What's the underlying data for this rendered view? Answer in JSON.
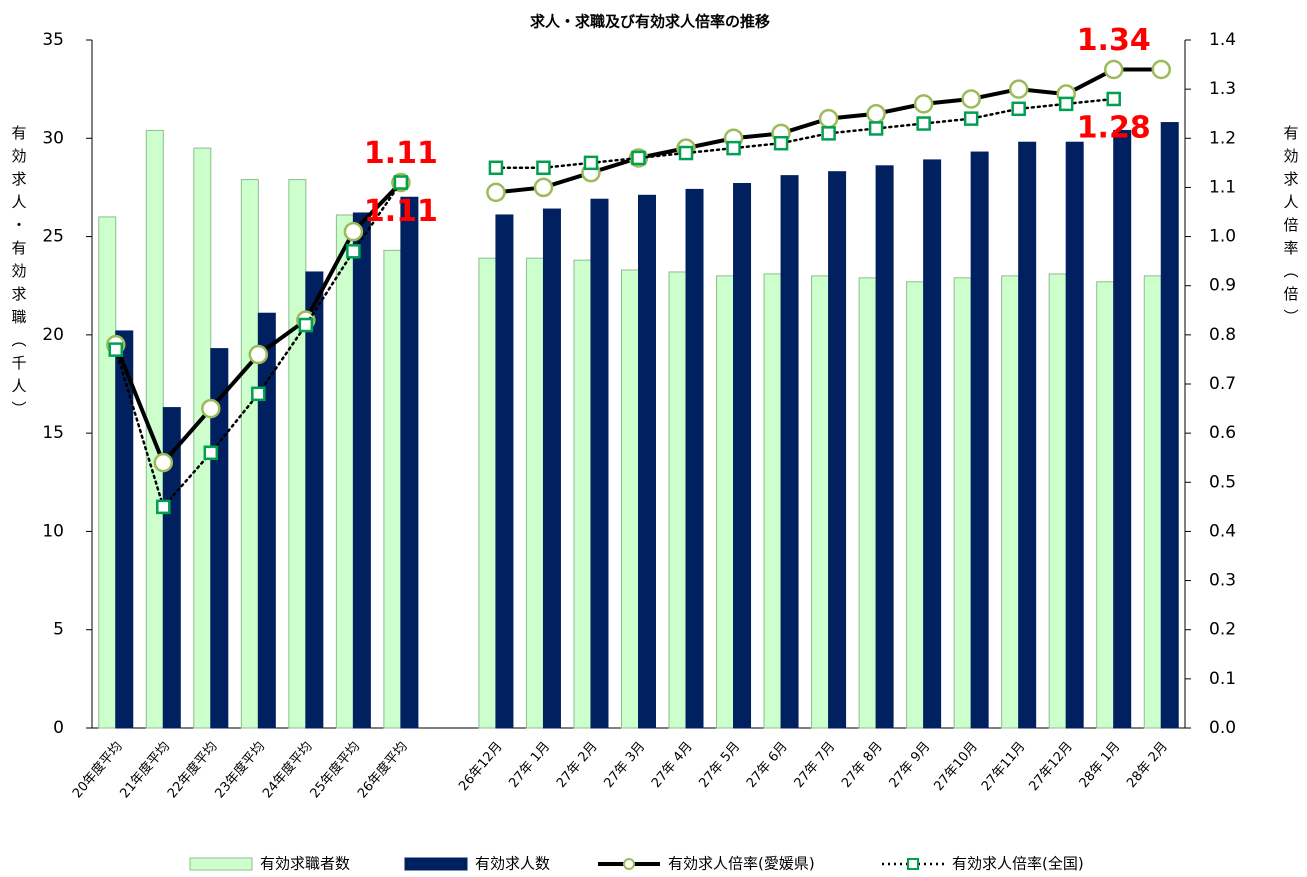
{
  "chart_data": {
    "type": "bar-line",
    "title": "求人・求職及び有効求人倍率の推移",
    "ylabel": "有効求人・有効求職（千人）",
    "y2label": "有効求人倍率（倍）",
    "categories": [
      "20年度平均",
      "21年度平均",
      "22年度平均",
      "23年度平均",
      "24年度平均",
      "25年度平均",
      "26年度平均",
      null,
      "26年12月",
      "27年 1月",
      "27年 2月",
      "27年 3月",
      "27年 4月",
      "27年 5月",
      "27年 6月",
      "27年 7月",
      "27年 8月",
      "27年 9月",
      "27年10月",
      "27年11月",
      "27年12月",
      "28年 1月",
      "28年 2月"
    ],
    "ylim": [
      0,
      35
    ],
    "yticks": [
      0,
      5,
      10,
      15,
      20,
      25,
      30,
      35
    ],
    "y2lim": [
      0,
      1.4
    ],
    "y2ticks": [
      {
        "value": 0,
        "label": "0.0"
      },
      0.1,
      0.2,
      0.3,
      0.4,
      0.5,
      0.6,
      0.7,
      0.8,
      0.9,
      {
        "value": 1,
        "label": "1.0"
      },
      1.1,
      1.2,
      1.3,
      1.4
    ],
    "series": [
      {
        "name": "有効求職者数",
        "kind": "bar",
        "color": "#ccffcc",
        "edge": "#8fbc8f",
        "values": [
          26.0,
          30.4,
          29.5,
          27.9,
          27.9,
          26.1,
          24.3,
          null,
          23.9,
          23.9,
          23.8,
          23.3,
          23.2,
          23.0,
          23.1,
          23.0,
          22.9,
          22.7,
          22.9,
          23.0,
          23.1,
          22.7,
          23.0
        ]
      },
      {
        "name": "有効求人数",
        "kind": "bar",
        "color": "#002060",
        "edge": "#002060",
        "values": [
          20.2,
          16.3,
          19.3,
          21.1,
          23.2,
          26.2,
          27.0,
          null,
          26.1,
          26.4,
          26.9,
          27.1,
          27.4,
          27.7,
          28.1,
          28.3,
          28.6,
          28.9,
          29.3,
          29.8,
          29.8,
          30.4,
          30.8
        ]
      },
      {
        "name": "有効求人倍率(愛媛県)",
        "kind": "line",
        "axis": "y2",
        "color": "#000000",
        "marker": "circle",
        "marker_color": "#9bbb59",
        "values": [
          0.78,
          0.54,
          0.65,
          0.76,
          0.83,
          1.01,
          1.11,
          null,
          1.09,
          1.1,
          1.13,
          1.16,
          1.18,
          1.2,
          1.21,
          1.24,
          1.25,
          1.27,
          1.28,
          1.3,
          1.29,
          1.34,
          1.34
        ],
        "value_labels": [
          null,
          null,
          null,
          null,
          null,
          null,
          "1.11",
          null,
          null,
          null,
          null,
          null,
          null,
          null,
          null,
          null,
          null,
          null,
          null,
          null,
          null,
          "1.34",
          null
        ]
      },
      {
        "name": "有効求人倍率(全国)",
        "kind": "line",
        "axis": "y2",
        "dash": true,
        "color": "#000000",
        "marker": "square",
        "marker_color": "#00a050",
        "values": [
          0.77,
          0.45,
          0.56,
          0.68,
          0.82,
          0.97,
          1.11,
          null,
          1.14,
          1.14,
          1.15,
          1.16,
          1.17,
          1.18,
          1.19,
          1.21,
          1.22,
          1.23,
          1.24,
          1.26,
          1.27,
          1.28,
          null
        ],
        "value_labels": [
          null,
          null,
          null,
          null,
          null,
          null,
          "1.11",
          null,
          null,
          null,
          null,
          null,
          null,
          null,
          null,
          null,
          null,
          null,
          null,
          null,
          null,
          "1.28",
          null
        ]
      }
    ]
  }
}
